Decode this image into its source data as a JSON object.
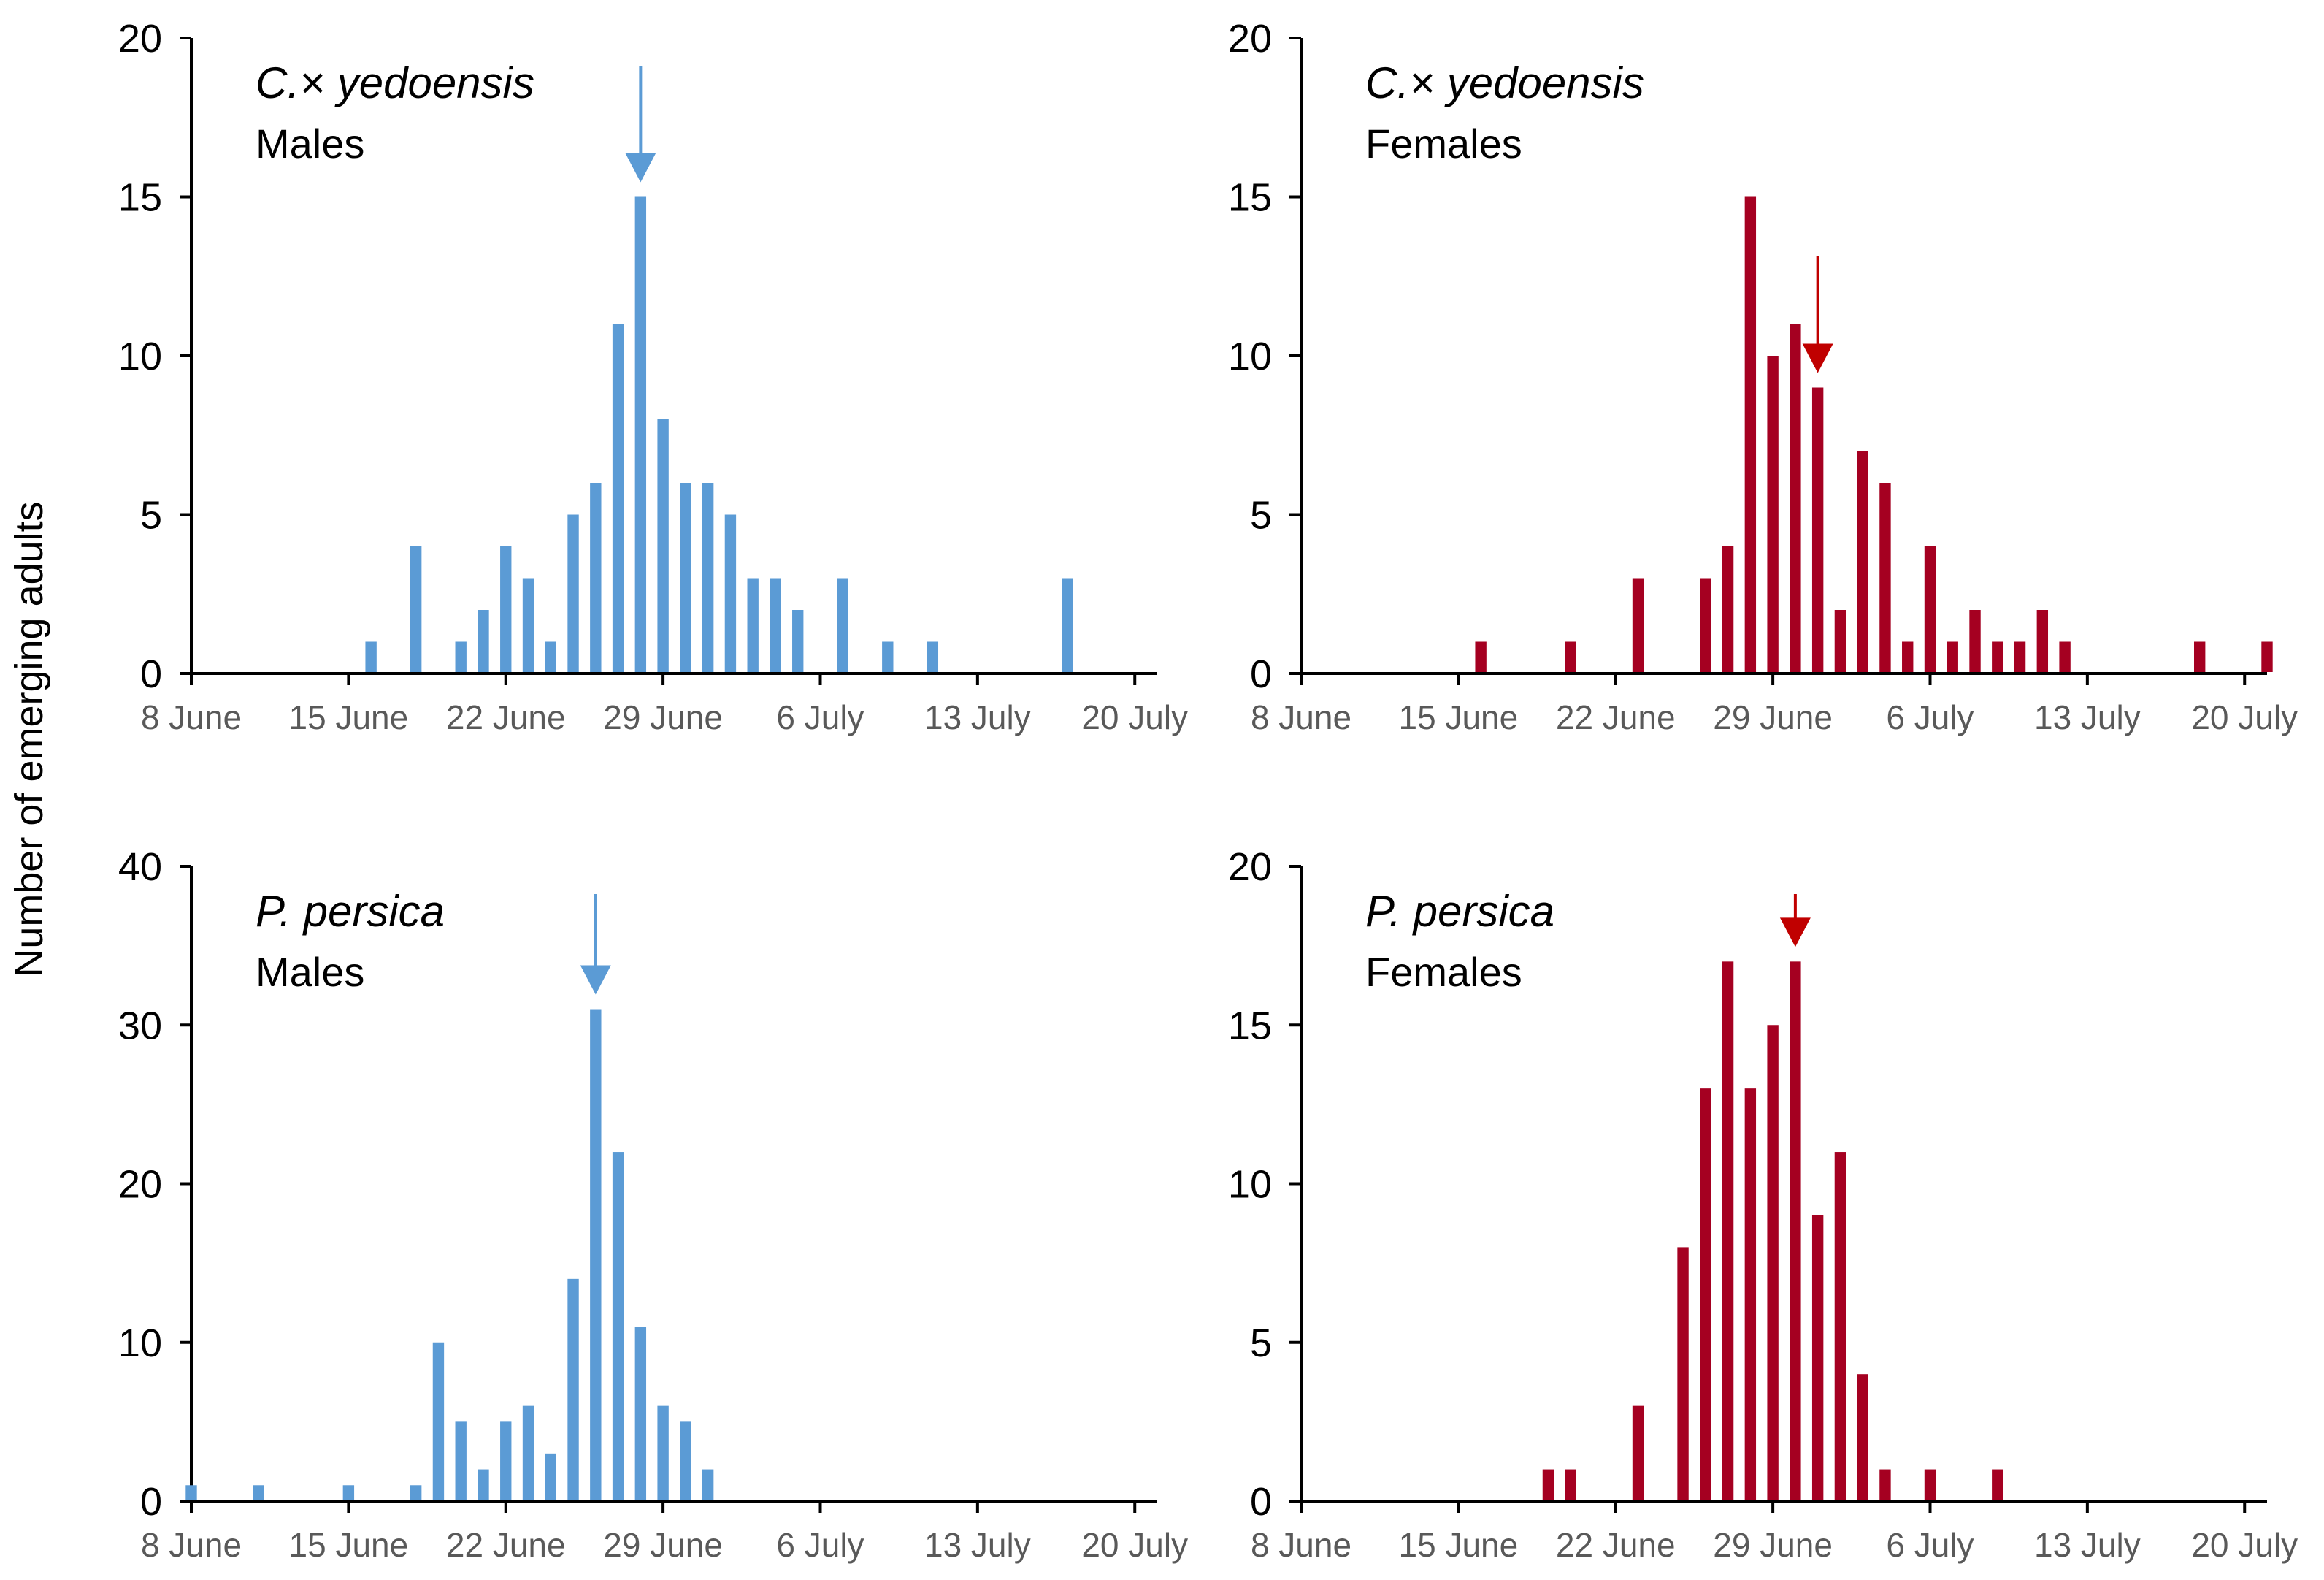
{
  "figure": {
    "ylabel": "Number of emerging adults"
  },
  "chart_data": [
    {
      "type": "bar",
      "species": "C.× yedoensis",
      "sex": "Males",
      "x_tick_labels": [
        "8 June",
        "15 June",
        "22 June",
        "29 June",
        "6 July",
        "13 July",
        "20 July"
      ],
      "x_tick_dates": [
        "2019-06-08",
        "2019-06-15",
        "2019-06-22",
        "2019-06-29",
        "2019-07-06",
        "2019-07-13",
        "2019-07-20"
      ],
      "xlim": [
        "2019-06-08",
        "2019-07-21"
      ],
      "ylim": [
        0,
        20
      ],
      "y_ticks": [
        0,
        5,
        10,
        15,
        20
      ],
      "color": "#5B9BD5",
      "arrow_color": "#5B9BD5",
      "arrow_date": "2019-06-28",
      "series": [
        {
          "x": [
            "2019-06-16",
            "2019-06-18",
            "2019-06-20",
            "2019-06-21",
            "2019-06-22",
            "2019-06-23",
            "2019-06-24",
            "2019-06-25",
            "2019-06-26",
            "2019-06-27",
            "2019-06-28",
            "2019-06-29",
            "2019-06-30",
            "2019-07-01",
            "2019-07-02",
            "2019-07-03",
            "2019-07-04",
            "2019-07-05",
            "2019-07-07",
            "2019-07-09",
            "2019-07-11",
            "2019-07-17"
          ],
          "values": [
            1,
            4,
            1,
            2,
            4,
            3,
            1,
            5,
            6,
            11,
            15,
            8,
            6,
            6,
            5,
            3,
            3,
            2,
            3,
            1,
            1,
            3
          ]
        }
      ]
    },
    {
      "type": "bar",
      "species": "C.× yedoensis",
      "sex": "Females",
      "x_tick_labels": [
        "8 June",
        "15 June",
        "22 June",
        "29 June",
        "6 July",
        "13 July",
        "20 July"
      ],
      "x_tick_dates": [
        "2019-06-08",
        "2019-06-15",
        "2019-06-22",
        "2019-06-29",
        "2019-07-06",
        "2019-07-13",
        "2019-07-20"
      ],
      "xlim": [
        "2019-06-08",
        "2019-07-21"
      ],
      "ylim": [
        0,
        20
      ],
      "y_ticks": [
        0,
        5,
        10,
        15,
        20
      ],
      "color": "#A50021",
      "arrow_color": "#C00000",
      "arrow_date": "2019-07-01",
      "series": [
        {
          "x": [
            "2019-06-16",
            "2019-06-20",
            "2019-06-23",
            "2019-06-26",
            "2019-06-27",
            "2019-06-28",
            "2019-06-29",
            "2019-06-30",
            "2019-07-01",
            "2019-07-02",
            "2019-07-03",
            "2019-07-04",
            "2019-07-05",
            "2019-07-06",
            "2019-07-07",
            "2019-07-08",
            "2019-07-09",
            "2019-07-10",
            "2019-07-11",
            "2019-07-12",
            "2019-07-18",
            "2019-07-21"
          ],
          "values": [
            1,
            1,
            3,
            3,
            4,
            15,
            10,
            11,
            9,
            2,
            7,
            6,
            1,
            4,
            1,
            2,
            1,
            1,
            2,
            1,
            1,
            1
          ]
        }
      ]
    },
    {
      "type": "bar",
      "species": "P. persica",
      "sex": "Males",
      "x_tick_labels": [
        "8 June",
        "15 June",
        "22 June",
        "29 June",
        "6 July",
        "13 July",
        "20 July"
      ],
      "x_tick_dates": [
        "2019-06-08",
        "2019-06-15",
        "2019-06-22",
        "2019-06-29",
        "2019-07-06",
        "2019-07-13",
        "2019-07-20"
      ],
      "xlim": [
        "2019-06-08",
        "2019-07-21"
      ],
      "ylim": [
        0,
        40
      ],
      "y_ticks": [
        0,
        10,
        20,
        30,
        40
      ],
      "color": "#5B9BD5",
      "arrow_color": "#5B9BD5",
      "arrow_date": "2019-06-26",
      "series": [
        {
          "x": [
            "2019-06-08",
            "2019-06-11",
            "2019-06-15",
            "2019-06-18",
            "2019-06-19",
            "2019-06-20",
            "2019-06-21",
            "2019-06-22",
            "2019-06-23",
            "2019-06-24",
            "2019-06-25",
            "2019-06-26",
            "2019-06-27",
            "2019-06-28",
            "2019-06-29",
            "2019-06-30",
            "2019-07-01"
          ],
          "values": [
            1,
            1,
            1,
            1,
            10,
            5,
            2,
            5,
            6,
            3,
            14,
            31,
            22,
            11,
            6,
            5,
            2
          ]
        }
      ]
    },
    {
      "type": "bar",
      "species": "P. persica",
      "sex": "Females",
      "x_tick_labels": [
        "8 June",
        "15 June",
        "22 June",
        "29 June",
        "6 July",
        "13 July",
        "20 July"
      ],
      "x_tick_dates": [
        "2019-06-08",
        "2019-06-15",
        "2019-06-22",
        "2019-06-29",
        "2019-07-06",
        "2019-07-13",
        "2019-07-20"
      ],
      "xlim": [
        "2019-06-08",
        "2019-07-21"
      ],
      "ylim": [
        0,
        20
      ],
      "y_ticks": [
        0,
        5,
        10,
        15,
        20
      ],
      "color": "#A50021",
      "arrow_color": "#C00000",
      "arrow_date": "2019-06-30",
      "series": [
        {
          "x": [
            "2019-06-19",
            "2019-06-20",
            "2019-06-23",
            "2019-06-25",
            "2019-06-26",
            "2019-06-27",
            "2019-06-28",
            "2019-06-29",
            "2019-06-30",
            "2019-07-01",
            "2019-07-02",
            "2019-07-03",
            "2019-07-04",
            "2019-07-06",
            "2019-07-09"
          ],
          "values": [
            1,
            1,
            3,
            8,
            13,
            17,
            13,
            15,
            17,
            9,
            11,
            4,
            1,
            1,
            1
          ]
        }
      ]
    }
  ]
}
